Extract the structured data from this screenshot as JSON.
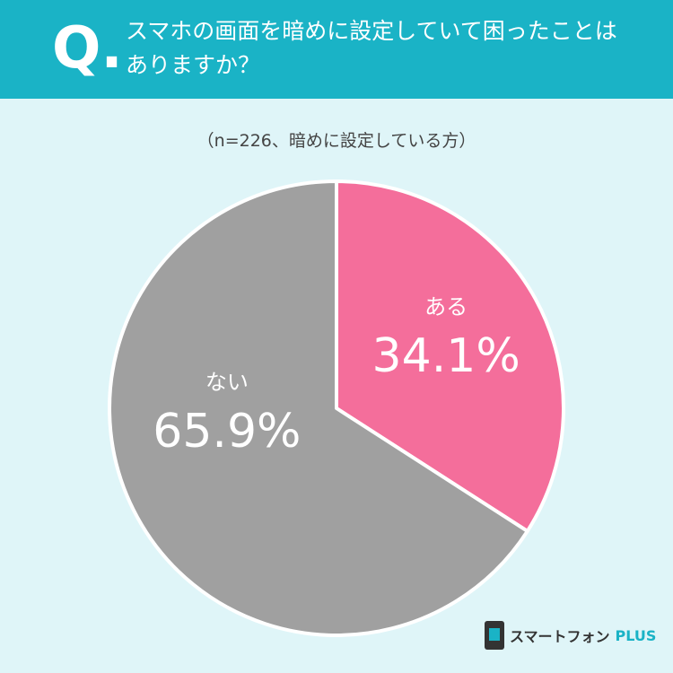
{
  "header": {
    "marker": "Q.",
    "title": "スマホの画面を暗めに設定していて困ったことはありますか？"
  },
  "chart_data": {
    "type": "pie",
    "subtitle": "（n=226、暗めに設定している方）",
    "categories": [
      "ある",
      "ない"
    ],
    "values": [
      34.1,
      65.9
    ],
    "value_labels": [
      "34.1%",
      "65.9%"
    ],
    "colors": [
      "#f46e9b",
      "#a0a0a0"
    ]
  },
  "brand": {
    "name": "スマートフォン",
    "suffix": "PLUS"
  }
}
